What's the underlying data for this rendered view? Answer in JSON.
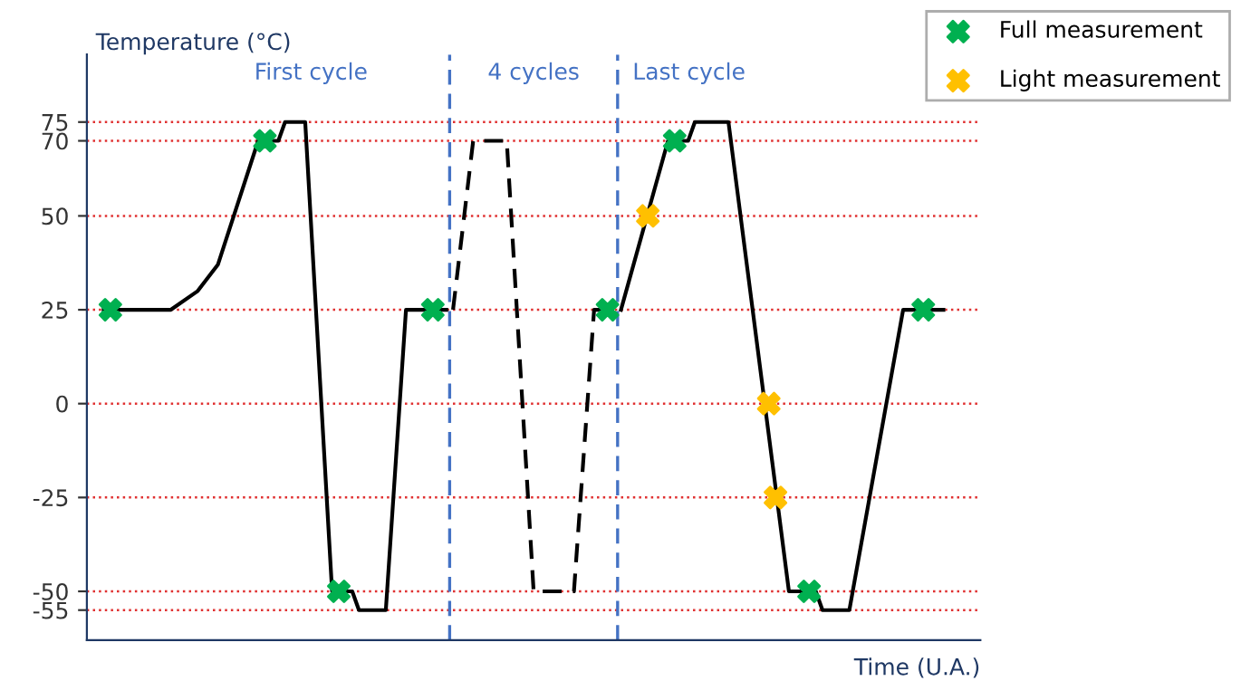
{
  "chart_data": {
    "type": "line",
    "xlabel": "Time (U.A.)",
    "ylabel": "Temperature (°C)",
    "categories": [
      null,
      null,
      null,
      null,
      null,
      null,
      null,
      null,
      null,
      null,
      null,
      null,
      null,
      null,
      null,
      null,
      null,
      null,
      null,
      null,
      null,
      null,
      null,
      null,
      null,
      null,
      null,
      null,
      null,
      null,
      null,
      null,
      null,
      null,
      null,
      null,
      null,
      null,
      null,
      null,
      null,
      null,
      null,
      null,
      null,
      null,
      null,
      null,
      null,
      null,
      null,
      null,
      null,
      null,
      null,
      null,
      null,
      null,
      null,
      null,
      null,
      null,
      null,
      null,
      null,
      null,
      null,
      null,
      null,
      null,
      null,
      null,
      null,
      null,
      null,
      null,
      null,
      null,
      null,
      null,
      null,
      null,
      null,
      null,
      null,
      null,
      null,
      null,
      null,
      null,
      null,
      null,
      null,
      null,
      null,
      null,
      null,
      null,
      null,
      null,
      null,
      null,
      null,
      null,
      null,
      null,
      null,
      null,
      null,
      null,
      null,
      null,
      null,
      null,
      null,
      null,
      null,
      null,
      null,
      null,
      null,
      null,
      null,
      null,
      null,
      null,
      null,
      null,
      null,
      null,
      null,
      null,
      null
    ],
    "ylim": [
      -63,
      93
    ],
    "yticks": [
      -55,
      -50,
      -25,
      0,
      25,
      50,
      70,
      75
    ],
    "tick_labels": "y",
    "grid": "y",
    "legend": "top right",
    "series": [
      {
        "color": "#000000",
        "line_style": "solid",
        "values": [
          null,
          null,
          25,
          null,
          null,
          null,
          null,
          null,
          null,
          null,
          null,
          null,
          25,
          null,
          null,
          null,
          30,
          null,
          null,
          37,
          null,
          null,
          null,
          null,
          null,
          70,
          null,
          null,
          70,
          75,
          null,
          null,
          75,
          null,
          null,
          null,
          -50,
          null,
          null,
          -50,
          -55,
          null,
          null,
          null,
          -55,
          null,
          null,
          25,
          null,
          null,
          null,
          null,
          null,
          25,
          null,
          null,
          null,
          null,
          null,
          null,
          null,
          null,
          null,
          null,
          null,
          null,
          null,
          null,
          null,
          null,
          null,
          null,
          null,
          null,
          null,
          null,
          null,
          null,
          null,
          null,
          null,
          null,
          null,
          null,
          null,
          null,
          null,
          null,
          null,
          null,
          null,
          null,
          null,
          null,
          null,
          null,
          null,
          null,
          null,
          null,
          null,
          null,
          null,
          null,
          null,
          null,
          null,
          null,
          null,
          null,
          null,
          null,
          null,
          null,
          null,
          null,
          null,
          null,
          null,
          null,
          null,
          null,
          null,
          null,
          null,
          null,
          null,
          null,
          null,
          null,
          null,
          null,
          null
        ]
      },
      {
        "color": "#000000",
        "line_style": "dashed",
        "values": [
          null,
          null,
          null,
          null,
          null,
          null,
          null,
          null,
          null,
          null,
          null,
          null,
          null,
          null,
          null,
          null,
          null,
          null,
          null,
          null,
          null,
          null,
          null,
          null,
          null,
          null,
          null,
          null,
          null,
          null,
          null,
          null,
          null,
          null,
          null,
          null,
          null,
          null,
          null,
          null,
          null,
          null,
          null,
          null,
          null,
          null,
          null,
          null,
          null,
          null,
          null,
          null,
          null,
          null,
          25,
          null,
          null,
          70,
          null,
          null,
          null,
          null,
          70,
          null,
          null,
          null,
          -50,
          null,
          null,
          null,
          null,
          null,
          -50,
          null,
          null,
          25,
          null,
          null,
          25,
          null,
          null,
          null,
          null,
          null,
          null,
          null,
          null,
          null,
          null,
          null,
          null,
          null,
          null,
          null,
          null,
          null,
          null,
          null,
          null,
          null,
          null,
          null,
          null,
          null,
          null,
          null,
          null,
          null,
          null,
          null,
          null,
          null,
          null,
          null,
          null,
          null,
          null,
          null,
          null,
          null,
          null,
          null,
          null,
          null,
          null,
          null,
          null,
          null,
          null,
          null,
          null,
          null,
          null
        ]
      },
      {
        "color": "#000000",
        "line_style": "solid",
        "values": [
          null,
          null,
          null,
          null,
          null,
          null,
          null,
          null,
          null,
          null,
          null,
          null,
          null,
          null,
          null,
          null,
          null,
          null,
          null,
          null,
          null,
          null,
          null,
          null,
          null,
          null,
          null,
          null,
          null,
          null,
          null,
          null,
          null,
          null,
          null,
          null,
          null,
          null,
          null,
          null,
          null,
          null,
          null,
          null,
          null,
          null,
          null,
          null,
          null,
          null,
          null,
          null,
          null,
          null,
          null,
          null,
          null,
          null,
          null,
          null,
          null,
          null,
          null,
          null,
          null,
          null,
          null,
          null,
          null,
          null,
          null,
          null,
          null,
          null,
          null,
          null,
          null,
          null,
          null,
          25,
          null,
          null,
          null,
          null,
          null,
          null,
          70,
          null,
          null,
          70,
          75,
          null,
          null,
          null,
          null,
          75,
          null,
          null,
          null,
          null,
          null,
          null,
          null,
          null,
          -50,
          null,
          null,
          null,
          -50,
          -55,
          null,
          null,
          null,
          -55,
          null,
          null,
          null,
          null,
          null,
          null,
          null,
          25,
          null,
          null,
          null,
          null,
          null,
          25,
          null,
          null,
          null,
          null,
          null
        ]
      },
      {
        "type": "scatter",
        "name": "Full measurement",
        "color": "#00b050",
        "marker": "cross",
        "values": [
          null,
          null,
          null,
          25,
          null,
          null,
          null,
          null,
          null,
          null,
          null,
          null,
          null,
          null,
          null,
          null,
          null,
          null,
          null,
          null,
          null,
          null,
          null,
          null,
          null,
          null,
          70,
          null,
          null,
          null,
          null,
          null,
          null,
          null,
          null,
          null,
          null,
          -50,
          null,
          null,
          null,
          null,
          null,
          null,
          null,
          null,
          null,
          null,
          null,
          null,
          null,
          25,
          null,
          null,
          null,
          null,
          null,
          null,
          null,
          null,
          null,
          null,
          null,
          null,
          null,
          null,
          null,
          null,
          null,
          null,
          null,
          null,
          null,
          null,
          null,
          null,
          null,
          25,
          null,
          null,
          null,
          null,
          null,
          null,
          null,
          null,
          null,
          70,
          null,
          null,
          null,
          null,
          null,
          null,
          null,
          null,
          null,
          null,
          null,
          null,
          null,
          null,
          null,
          null,
          null,
          null,
          null,
          -50,
          null,
          null,
          null,
          null,
          null,
          null,
          null,
          null,
          null,
          null,
          null,
          null,
          null,
          null,
          null,
          null,
          25,
          null,
          null,
          null,
          null,
          null,
          null,
          null,
          null
        ]
      },
      {
        "type": "scatter",
        "name": "Light measurement",
        "color": "#ffc000",
        "marker": "cross",
        "values": [
          null,
          null,
          null,
          null,
          null,
          null,
          null,
          null,
          null,
          null,
          null,
          null,
          null,
          null,
          null,
          null,
          null,
          null,
          null,
          null,
          null,
          null,
          null,
          null,
          null,
          null,
          null,
          null,
          null,
          null,
          null,
          null,
          null,
          null,
          null,
          null,
          null,
          null,
          null,
          null,
          null,
          null,
          null,
          null,
          null,
          null,
          null,
          null,
          null,
          null,
          null,
          null,
          null,
          null,
          null,
          null,
          null,
          null,
          null,
          null,
          null,
          null,
          null,
          null,
          null,
          null,
          null,
          null,
          null,
          null,
          null,
          null,
          null,
          null,
          null,
          null,
          null,
          null,
          null,
          null,
          null,
          null,
          null,
          50,
          null,
          null,
          null,
          null,
          null,
          null,
          null,
          null,
          null,
          null,
          null,
          null,
          null,
          null,
          null,
          null,
          null,
          0,
          -25,
          null,
          null,
          null,
          null,
          null,
          null,
          null,
          null,
          null,
          null,
          null,
          null,
          null,
          null,
          null,
          null,
          null,
          null,
          null,
          null,
          null,
          null,
          null,
          null,
          null,
          null,
          null,
          null,
          null,
          null
        ]
      }
    ],
    "annotations": [
      "First cycle",
      "4 cycles",
      "Last cycle"
    ]
  }
}
